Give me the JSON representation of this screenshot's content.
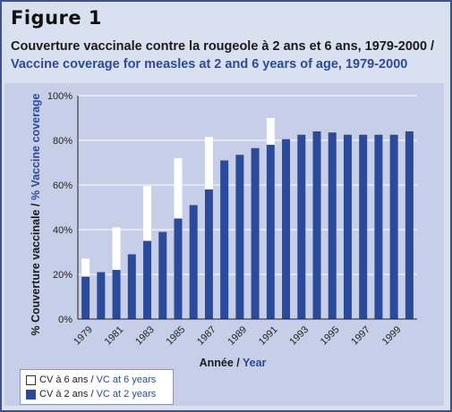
{
  "figure_label": "Figure 1",
  "title_fr": "Couverture vaccinale contre la rougeole à 2 ans et 6 ans, 1979-2000 /",
  "title_en": "Vaccine coverage for measles at 2 and 6 years of age, 1979-2000",
  "legend": {
    "six_fr": "CV à 6 ans / ",
    "six_en": "VC at 6 years",
    "two_fr": "CV à 2 ans / ",
    "two_en": "VC at 2 years"
  },
  "colors": {
    "two_years": "#2c4a9b",
    "six_years": "#ffffff",
    "panel": "#c6cfe7",
    "frame": "#3b4f9a"
  },
  "chart_data": {
    "type": "bar",
    "xlabel_fr": "Année",
    "xlabel_sep": " / ",
    "xlabel_en": "Year",
    "ylabel_fr": "% Couverture vaccinale",
    "ylabel_sep": " / ",
    "ylabel_en": "% Vaccine coverage",
    "ylim": [
      0,
      100
    ],
    "yticks": [
      "0%",
      "20%",
      "40%",
      "60%",
      "80%",
      "100%"
    ],
    "ytick_values": [
      0,
      20,
      40,
      60,
      80,
      100
    ],
    "grid": true,
    "legend_position": "bottom-left",
    "categories": [
      1979,
      1980,
      1981,
      1982,
      1983,
      1984,
      1985,
      1986,
      1987,
      1988,
      1989,
      1990,
      1991,
      1992,
      1993,
      1994,
      1995,
      1996,
      1997,
      1998,
      1999,
      2000
    ],
    "xtick_labels": [
      "1979",
      "1981",
      "1983",
      "1985",
      "1987",
      "1989",
      "1991",
      "1993",
      "1995",
      "1997",
      "1999"
    ],
    "series": [
      {
        "name": "CV à 2 ans / VC at 2 years",
        "values": [
          19,
          21,
          22,
          29,
          35,
          39,
          45,
          51,
          58,
          71,
          73.5,
          76.5,
          78,
          80.5,
          82.5,
          84,
          83.5,
          82.5,
          82.5,
          82.5,
          82.5,
          84
        ]
      },
      {
        "name": "CV à 6 ans / VC at 6 years",
        "values": [
          27,
          null,
          41,
          null,
          59.5,
          null,
          72,
          null,
          81.5,
          null,
          null,
          null,
          90,
          null,
          null,
          null,
          null,
          null,
          null,
          null,
          null,
          null
        ]
      }
    ]
  }
}
